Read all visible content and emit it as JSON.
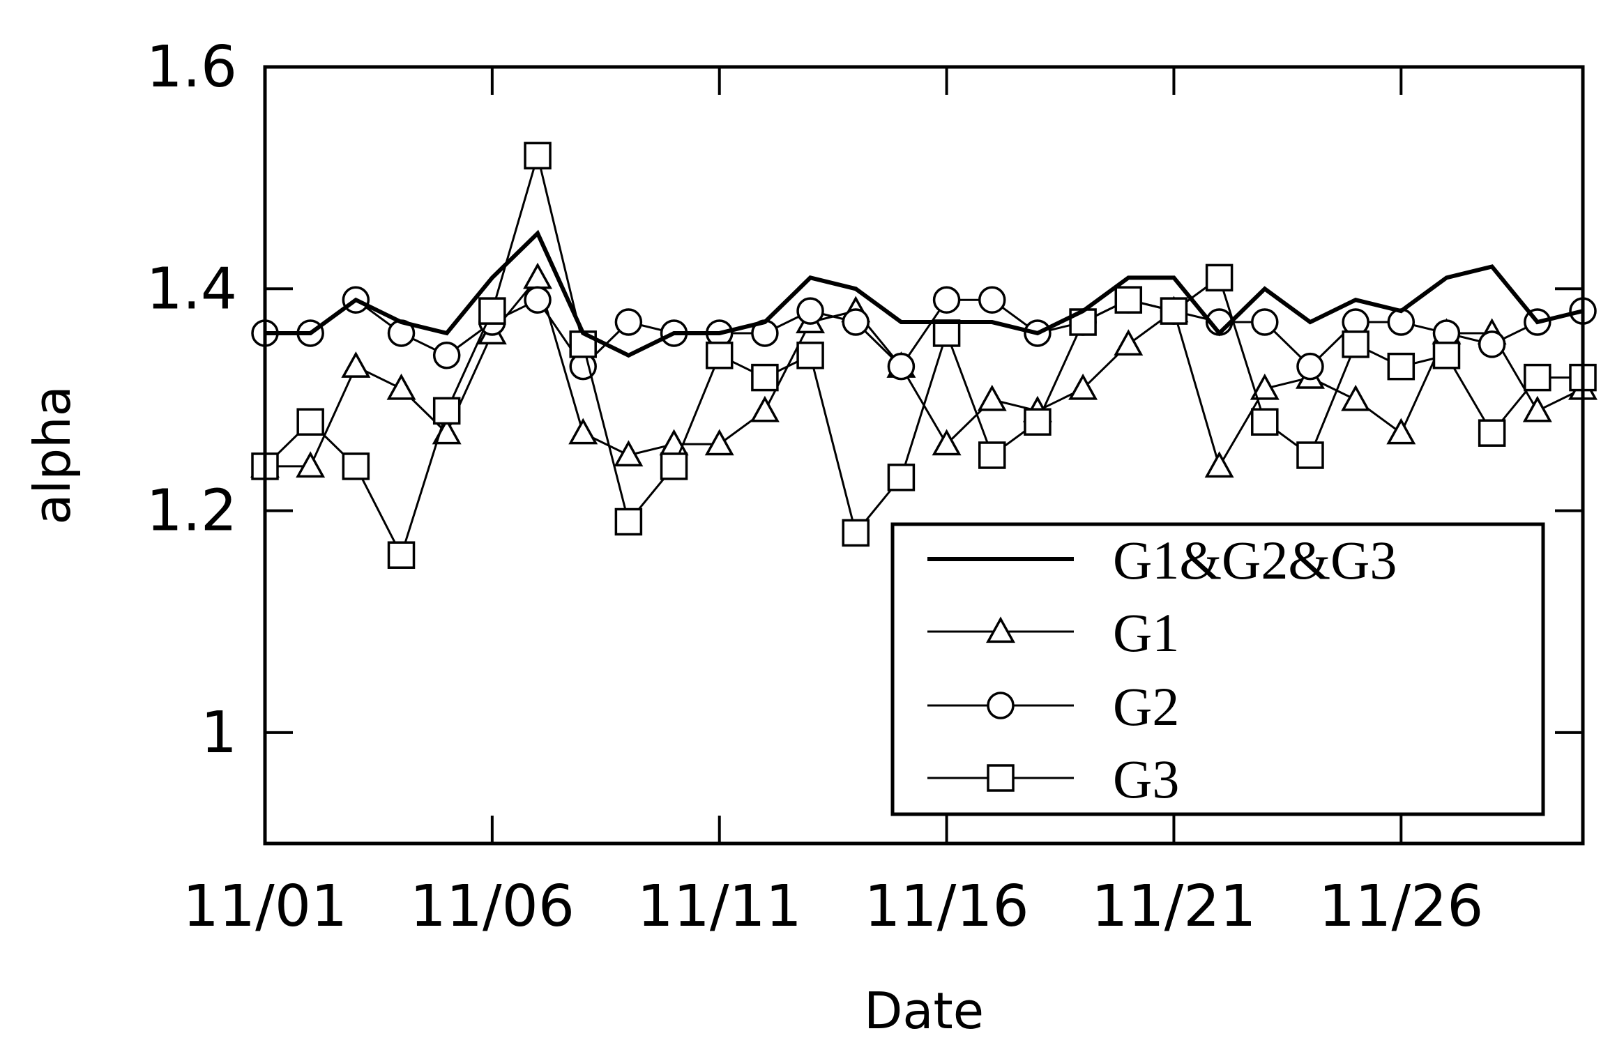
{
  "chart_data": {
    "type": "line",
    "xlabel": "Date",
    "ylabel": "alpha",
    "x": [
      "11/01",
      "11/02",
      "11/03",
      "11/04",
      "11/05",
      "11/06",
      "11/07",
      "11/08",
      "11/09",
      "11/10",
      "11/11",
      "11/12",
      "11/13",
      "11/14",
      "11/15",
      "11/16",
      "11/17",
      "11/18",
      "11/19",
      "11/20",
      "11/21",
      "11/22",
      "11/23",
      "11/24",
      "11/25",
      "11/26",
      "11/27",
      "11/28",
      "11/29",
      "11/30"
    ],
    "xticks": [
      "11/01",
      "11/06",
      "11/11",
      "11/16",
      "11/21",
      "11/26"
    ],
    "yticks": [
      1,
      1.2,
      1.4,
      1.6
    ],
    "ytick_labels": [
      "1",
      "1.2",
      "1.4",
      "1.6"
    ],
    "ylim": [
      0.9,
      1.6
    ],
    "xlim": [
      "11/01",
      "11/30"
    ],
    "grid": false,
    "legend_position": "bottom-right",
    "series": [
      {
        "name": "G1&G2&G3",
        "marker": "none",
        "values": [
          1.36,
          1.36,
          1.39,
          1.37,
          1.36,
          1.41,
          1.45,
          1.36,
          1.34,
          1.36,
          1.36,
          1.37,
          1.41,
          1.4,
          1.37,
          1.37,
          1.37,
          1.36,
          1.38,
          1.41,
          1.41,
          1.36,
          1.4,
          1.37,
          1.39,
          1.38,
          1.41,
          1.42,
          1.37,
          1.38
        ]
      },
      {
        "name": "G1",
        "marker": "triangle",
        "values": [
          1.24,
          1.24,
          1.33,
          1.31,
          1.27,
          1.36,
          1.41,
          1.27,
          1.25,
          1.26,
          1.26,
          1.29,
          1.37,
          1.38,
          1.33,
          1.26,
          1.3,
          1.29,
          1.31,
          1.35,
          1.38,
          1.24,
          1.31,
          1.32,
          1.3,
          1.27,
          1.36,
          1.36,
          1.29,
          1.31
        ]
      },
      {
        "name": "G2",
        "marker": "circle",
        "values": [
          1.36,
          1.36,
          1.39,
          1.36,
          1.34,
          1.37,
          1.39,
          1.33,
          1.37,
          1.36,
          1.36,
          1.36,
          1.38,
          1.37,
          1.33,
          1.39,
          1.39,
          1.36,
          1.37,
          1.39,
          1.38,
          1.37,
          1.37,
          1.33,
          1.37,
          1.37,
          1.36,
          1.35,
          1.37,
          1.38
        ]
      },
      {
        "name": "G3",
        "marker": "square",
        "values": [
          1.24,
          1.28,
          1.24,
          1.16,
          1.29,
          1.38,
          1.52,
          1.35,
          1.19,
          1.24,
          1.34,
          1.32,
          1.34,
          1.18,
          1.23,
          1.36,
          1.25,
          1.28,
          1.37,
          1.39,
          1.38,
          1.41,
          1.28,
          1.25,
          1.35,
          1.33,
          1.34,
          1.27,
          1.32,
          1.32
        ]
      }
    ]
  }
}
